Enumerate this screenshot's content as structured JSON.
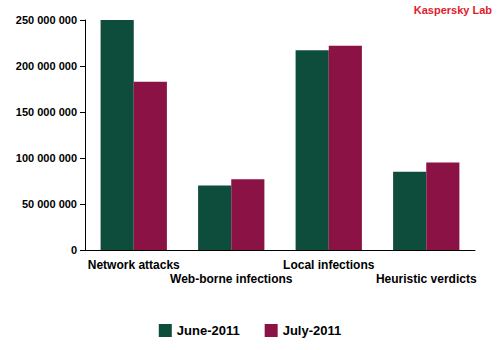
{
  "chart_data": {
    "type": "bar",
    "annotation": "Kaspersky Lab",
    "categories": [
      "Network attacks",
      "Web-borne infections",
      "Local infections",
      "Heuristic verdicts"
    ],
    "series": [
      {
        "name": "June-2011",
        "color": "#0e4d3c",
        "values": [
          250000000,
          70000000,
          217000000,
          85000000
        ]
      },
      {
        "name": "July-2011",
        "color": "#8a1244",
        "values": [
          183000000,
          77000000,
          222000000,
          95000000
        ]
      }
    ],
    "ylim": [
      0,
      250000000
    ],
    "yticks": [
      0,
      {
        "value": 50000000,
        "label": "50 000 000"
      },
      {
        "value": 100000000,
        "label": "100 000 000"
      },
      {
        "value": 150000000,
        "label": "150 000 000"
      },
      {
        "value": 200000000,
        "label": "200 000 000"
      },
      {
        "value": 250000000,
        "label": "250 000 000"
      }
    ],
    "grid": false,
    "legend": "bottom"
  }
}
